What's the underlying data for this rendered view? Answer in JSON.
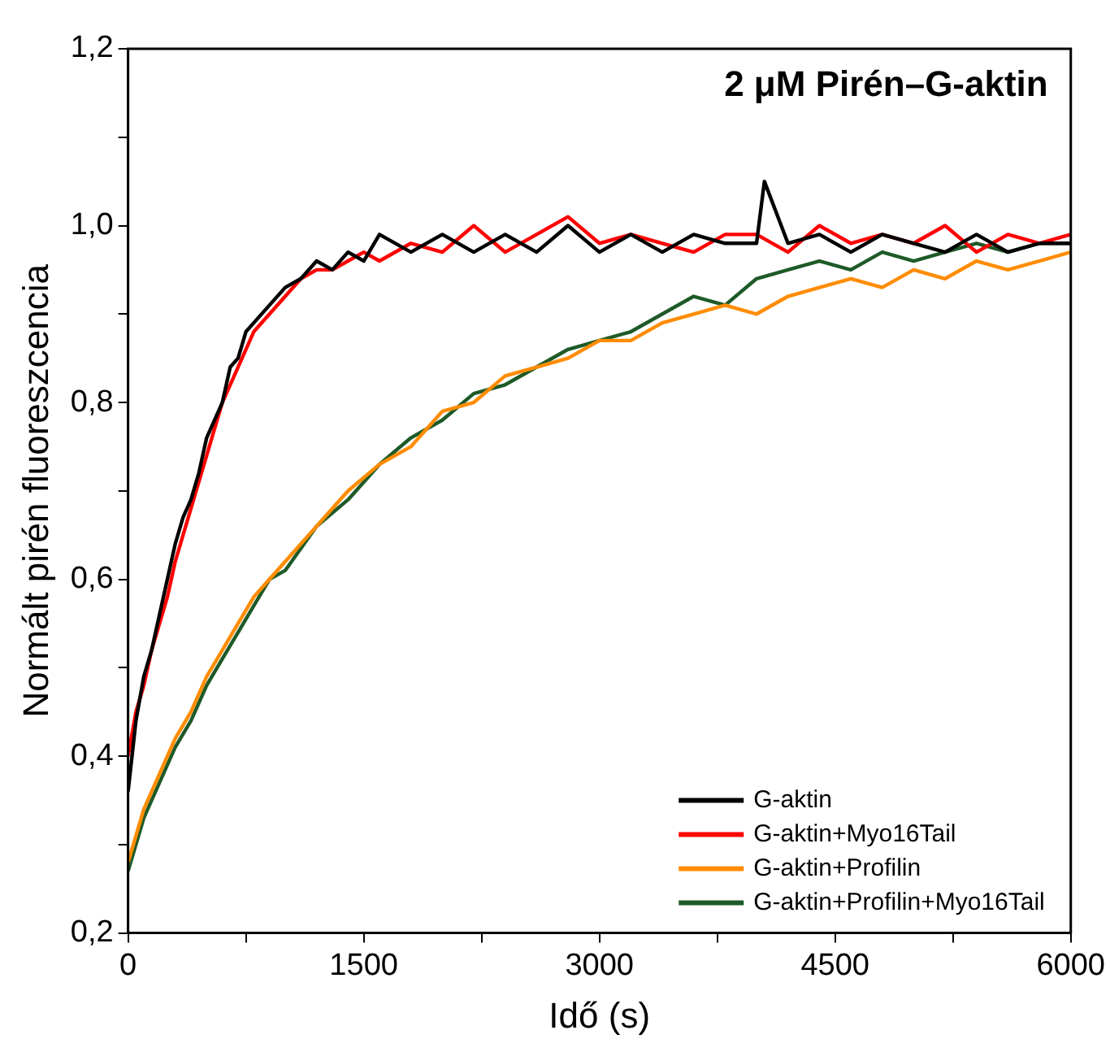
{
  "chart_data": {
    "type": "line",
    "title": "2 μM Pirén–G-aktin",
    "xlabel": "Idő (s)",
    "ylabel": "Normált pirén fluoreszcencia",
    "xlim": [
      0,
      6000
    ],
    "ylim": [
      0.2,
      1.2
    ],
    "xticks": [
      0,
      {
        "value": 750,
        "label": null
      },
      1500,
      {
        "value": 2250,
        "label": null
      },
      3000,
      {
        "value": 3750,
        "label": null
      },
      4500,
      {
        "value": 5250,
        "label": null
      },
      6000
    ],
    "yticks": [
      {
        "value": 0.2,
        "label": "0,2"
      },
      {
        "value": 0.3,
        "label": null
      },
      {
        "value": 0.4,
        "label": "0,4"
      },
      {
        "value": 0.5,
        "label": null
      },
      {
        "value": 0.6,
        "label": "0,6"
      },
      {
        "value": 0.7,
        "label": null
      },
      {
        "value": 0.8,
        "label": "0,8"
      },
      {
        "value": 0.9,
        "label": null
      },
      {
        "value": 1.0,
        "label": "1,0"
      },
      {
        "value": 1.1,
        "label": null
      },
      {
        "value": 1.2,
        "label": "1,2"
      }
    ],
    "grid": false,
    "legend": "bottom right",
    "marker": "none",
    "line_style": "solid",
    "series": [
      {
        "name": "G-aktin",
        "color": "#000000",
        "x": [
          0,
          50,
          100,
          150,
          200,
          250,
          300,
          350,
          400,
          450,
          500,
          550,
          600,
          650,
          700,
          750,
          800,
          900,
          1000,
          1100,
          1200,
          1300,
          1400,
          1500,
          1600,
          1800,
          2000,
          2200,
          2400,
          2600,
          2800,
          3000,
          3200,
          3400,
          3600,
          3800,
          4000,
          4050,
          4200,
          4400,
          4600,
          4800,
          5000,
          5200,
          5400,
          5600,
          5800,
          6000
        ],
        "values": [
          0.36,
          0.44,
          0.49,
          0.52,
          0.56,
          0.6,
          0.64,
          0.67,
          0.69,
          0.72,
          0.76,
          0.78,
          0.8,
          0.84,
          0.85,
          0.88,
          0.89,
          0.91,
          0.93,
          0.94,
          0.96,
          0.95,
          0.97,
          0.96,
          0.99,
          0.97,
          0.99,
          0.97,
          0.99,
          0.97,
          1.0,
          0.97,
          0.99,
          0.97,
          0.99,
          0.98,
          0.98,
          1.05,
          0.98,
          0.99,
          0.97,
          0.99,
          0.98,
          0.97,
          0.99,
          0.97,
          0.98,
          0.98
        ]
      },
      {
        "name": "G-aktin+Myo16Tail",
        "color": "#ff0000",
        "x": [
          0,
          50,
          100,
          150,
          200,
          250,
          300,
          350,
          400,
          450,
          500,
          550,
          600,
          650,
          700,
          750,
          800,
          900,
          1000,
          1100,
          1200,
          1300,
          1400,
          1500,
          1600,
          1800,
          2000,
          2200,
          2400,
          2600,
          2800,
          3000,
          3200,
          3400,
          3600,
          3800,
          4000,
          4200,
          4400,
          4600,
          4800,
          5000,
          5200,
          5400,
          5600,
          5800,
          6000
        ],
        "values": [
          0.4,
          0.45,
          0.48,
          0.52,
          0.55,
          0.58,
          0.62,
          0.65,
          0.68,
          0.71,
          0.74,
          0.77,
          0.8,
          0.82,
          0.84,
          0.86,
          0.88,
          0.9,
          0.92,
          0.94,
          0.95,
          0.95,
          0.96,
          0.97,
          0.96,
          0.98,
          0.97,
          1.0,
          0.97,
          0.99,
          1.01,
          0.98,
          0.99,
          0.98,
          0.97,
          0.99,
          0.99,
          0.97,
          1.0,
          0.98,
          0.99,
          0.98,
          1.0,
          0.97,
          0.99,
          0.98,
          0.99
        ]
      },
      {
        "name": "G-aktin+Profilin",
        "color": "#ff8c00",
        "x": [
          0,
          100,
          200,
          300,
          400,
          500,
          600,
          700,
          800,
          900,
          1000,
          1200,
          1400,
          1600,
          1800,
          2000,
          2200,
          2400,
          2600,
          2800,
          3000,
          3200,
          3400,
          3600,
          3800,
          4000,
          4200,
          4400,
          4600,
          4800,
          5000,
          5200,
          5400,
          5600,
          5800,
          6000
        ],
        "values": [
          0.28,
          0.34,
          0.38,
          0.42,
          0.45,
          0.49,
          0.52,
          0.55,
          0.58,
          0.6,
          0.62,
          0.66,
          0.7,
          0.73,
          0.75,
          0.79,
          0.8,
          0.83,
          0.84,
          0.85,
          0.87,
          0.87,
          0.89,
          0.9,
          0.91,
          0.9,
          0.92,
          0.93,
          0.94,
          0.93,
          0.95,
          0.94,
          0.96,
          0.95,
          0.96,
          0.97
        ]
      },
      {
        "name": "G-aktin+Profilin+Myo16Tail",
        "color": "#1e5a28",
        "x": [
          0,
          100,
          200,
          300,
          400,
          500,
          600,
          700,
          800,
          900,
          1000,
          1200,
          1400,
          1600,
          1800,
          2000,
          2200,
          2400,
          2600,
          2800,
          3000,
          3200,
          3400,
          3600,
          3800,
          4000,
          4200,
          4400,
          4600,
          4800,
          5000,
          5200,
          5400,
          5600,
          5800,
          6000
        ],
        "values": [
          0.27,
          0.33,
          0.37,
          0.41,
          0.44,
          0.48,
          0.51,
          0.54,
          0.57,
          0.6,
          0.61,
          0.66,
          0.69,
          0.73,
          0.76,
          0.78,
          0.81,
          0.82,
          0.84,
          0.86,
          0.87,
          0.88,
          0.9,
          0.92,
          0.91,
          0.94,
          0.95,
          0.96,
          0.95,
          0.97,
          0.96,
          0.97,
          0.98,
          0.97,
          0.98,
          0.98
        ]
      }
    ]
  }
}
